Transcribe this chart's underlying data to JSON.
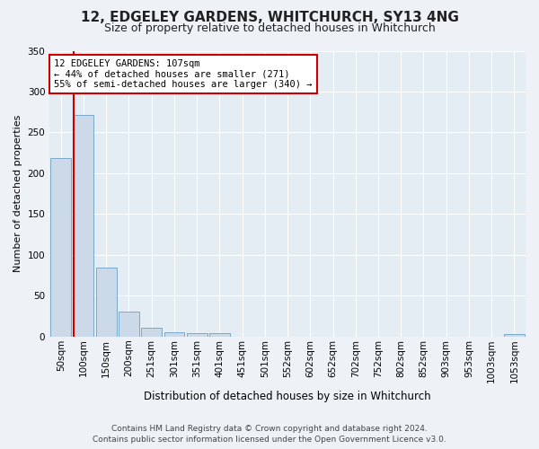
{
  "title": "12, EDGELEY GARDENS, WHITCHURCH, SY13 4NG",
  "subtitle": "Size of property relative to detached houses in Whitchurch",
  "xlabel": "Distribution of detached houses by size in Whitchurch",
  "ylabel": "Number of detached properties",
  "bar_labels": [
    "50sqm",
    "100sqm",
    "150sqm",
    "200sqm",
    "251sqm",
    "301sqm",
    "351sqm",
    "401sqm",
    "451sqm",
    "501sqm",
    "552sqm",
    "602sqm",
    "652sqm",
    "702sqm",
    "752sqm",
    "802sqm",
    "852sqm",
    "903sqm",
    "953sqm",
    "1003sqm",
    "1053sqm"
  ],
  "bar_values": [
    219,
    271,
    84,
    30,
    11,
    5,
    4,
    4,
    0,
    0,
    0,
    0,
    0,
    0,
    0,
    0,
    0,
    0,
    0,
    0,
    3
  ],
  "bar_color": "#ccd9e8",
  "bar_edge_color": "#7aaac8",
  "vline_x_index": 1,
  "vline_side": "right",
  "vline_color": "#cc0000",
  "annotation_title": "12 EDGELEY GARDENS: 107sqm",
  "annotation_line1": "← 44% of detached houses are smaller (271)",
  "annotation_line2": "55% of semi-detached houses are larger (340) →",
  "annotation_box_color": "#ffffff",
  "annotation_box_edge": "#cc0000",
  "ylim": [
    0,
    350
  ],
  "yticks": [
    0,
    50,
    100,
    150,
    200,
    250,
    300,
    350
  ],
  "footer1": "Contains HM Land Registry data © Crown copyright and database right 2024.",
  "footer2": "Contains public sector information licensed under the Open Government Licence v3.0.",
  "bg_color": "#eef2f7",
  "plot_bg_color": "#e4ecf4",
  "grid_color": "#ffffff",
  "title_fontsize": 11,
  "subtitle_fontsize": 9,
  "ylabel_fontsize": 8,
  "xlabel_fontsize": 8.5,
  "tick_fontsize": 7.5,
  "footer_fontsize": 6.5
}
